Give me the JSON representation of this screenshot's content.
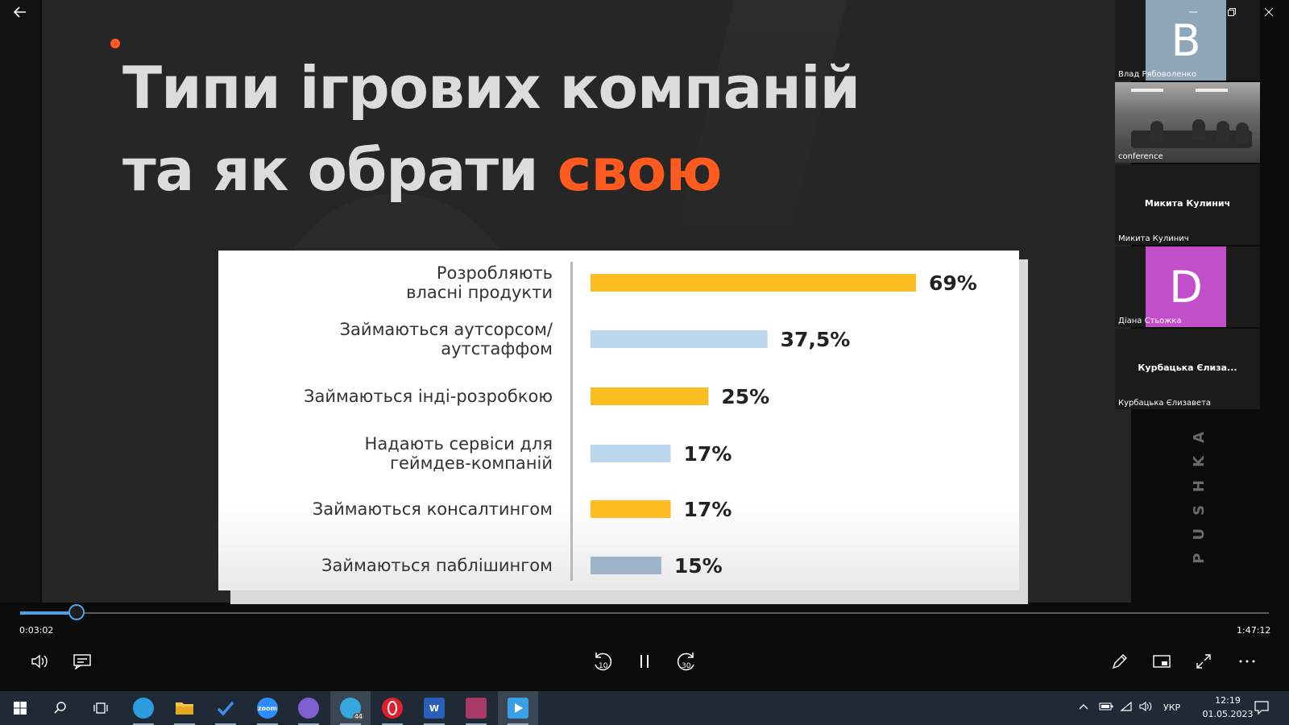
{
  "window": {
    "back_icon": "arrow-left-icon",
    "controls": [
      "minimize-icon",
      "restore-icon",
      "close-icon"
    ]
  },
  "slide": {
    "title_line1": "Типи ігрових компаній",
    "title_line2_plain": "та як обрати ",
    "title_line2_accent": "свою",
    "accent_color": "#ff5a1f",
    "side_brand": "PUSHKA"
  },
  "chart_data": {
    "type": "bar",
    "orientation": "horizontal",
    "categories": [
      [
        "Розробляють",
        "власні продукти"
      ],
      [
        "Займаються аутсорсом/",
        "аутстаффом"
      ],
      [
        "Займаються  інді-розробкою"
      ],
      [
        "Надають сервіси для",
        "геймдев-компаній"
      ],
      [
        "Займаються консалтингом"
      ],
      [
        "Займаються  паблішингом"
      ]
    ],
    "values": [
      69,
      37.5,
      25,
      17,
      17,
      15
    ],
    "value_labels": [
      "69%",
      "37,5%",
      "25%",
      "17%",
      "17%",
      "15%"
    ],
    "colors": [
      "#fbbd20",
      "#bcd6ee",
      "#fbbd20",
      "#bcd6ee",
      "#fbbd20",
      "#9fb4c8"
    ],
    "xlim": [
      0,
      69
    ]
  },
  "participants": [
    {
      "name": "Влад Рябоволенко",
      "initial": "B",
      "avatar_color": "#8fa6b8"
    },
    {
      "name": "conference",
      "type": "video"
    },
    {
      "name": "Микита Кулинич",
      "display": "Микита Кулинич"
    },
    {
      "name": "Діана Стьожка",
      "initial": "D",
      "avatar_color": "#c24ec9"
    },
    {
      "name": "Курбацька Єлизавета",
      "display": "Курбацька Єлиза..."
    }
  ],
  "player": {
    "elapsed": "0:03:02",
    "total": "1:47:12",
    "progress": 0.028,
    "replay_label": "10",
    "forward_label": "30",
    "controls_left": [
      "volume-icon",
      "subtitles-icon"
    ],
    "controls_center": [
      "rewind-10-icon",
      "pause-icon",
      "forward-30-icon"
    ],
    "controls_right": [
      "pen-icon",
      "miniplayer-icon",
      "fullscreen-icon",
      "more-icon"
    ]
  },
  "taskbar": {
    "apps": [
      {
        "name": "start",
        "icon": "windows-icon",
        "color": "#ffffff"
      },
      {
        "name": "search",
        "icon": "search-icon",
        "color": "#ffffff"
      },
      {
        "name": "task-view",
        "icon": "task-view-icon",
        "color": "#ffffff"
      },
      {
        "name": "edge",
        "icon": "edge-icon",
        "color": "#2d9be0"
      },
      {
        "name": "explorer",
        "icon": "folder-icon",
        "color": "#f4c44a"
      },
      {
        "name": "todo",
        "icon": "check-icon",
        "color": "#3b8eea"
      },
      {
        "name": "zoom",
        "icon": "zoom-icon",
        "color": "#2d8cff",
        "label": "zoom"
      },
      {
        "name": "viber",
        "icon": "viber-icon",
        "color": "#7d5fd0"
      },
      {
        "name": "telegram",
        "icon": "telegram-icon",
        "color": "#35a6de",
        "badge": "44"
      },
      {
        "name": "opera",
        "icon": "opera-icon",
        "color": "#e0202f"
      },
      {
        "name": "word",
        "icon": "word-icon",
        "color": "#2b5eb8",
        "label": "W"
      },
      {
        "name": "winrar",
        "icon": "winrar-icon",
        "color": "#a83a6a"
      },
      {
        "name": "media-player",
        "icon": "media-player-icon",
        "color": "#3aa0e6"
      }
    ],
    "language": "УКР",
    "time": "12:19",
    "date": "01.05.2023"
  }
}
